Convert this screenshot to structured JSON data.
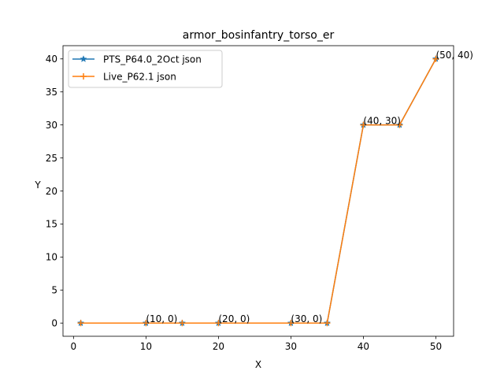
{
  "chart_data": {
    "type": "line",
    "title": "armor_bosinfantry_torso_er",
    "xlabel": "X",
    "ylabel": "Y",
    "xlim": [
      -1.45,
      52.45
    ],
    "ylim": [
      -2,
      42
    ],
    "xticks": [
      0,
      10,
      20,
      30,
      40,
      50
    ],
    "yticks": [
      0,
      5,
      10,
      15,
      20,
      25,
      30,
      35,
      40
    ],
    "grid": false,
    "legend_position": "upper-left",
    "series": [
      {
        "name": "PTS_P64.0_2Oct json",
        "color": "#1f77b4",
        "marker": "star",
        "x": [
          1,
          10,
          15,
          20,
          30,
          35,
          40,
          45,
          50
        ],
        "y": [
          0,
          0,
          0,
          0,
          0,
          0,
          30,
          30,
          40
        ]
      },
      {
        "name": "Live_P62.1 json",
        "color": "#ff7f0e",
        "marker": "plus",
        "x": [
          1,
          10,
          15,
          20,
          30,
          35,
          40,
          45,
          50
        ],
        "y": [
          0,
          0,
          0,
          0,
          0,
          0,
          30,
          30,
          40
        ]
      }
    ],
    "annotations": [
      {
        "x": 10,
        "y": 0,
        "text": "(10, 0)"
      },
      {
        "x": 20,
        "y": 0,
        "text": "(20, 0)"
      },
      {
        "x": 30,
        "y": 0,
        "text": "(30, 0)"
      },
      {
        "x": 40,
        "y": 30,
        "text": "(40, 30)"
      },
      {
        "x": 50,
        "y": 40,
        "text": "(50, 40)"
      }
    ]
  }
}
